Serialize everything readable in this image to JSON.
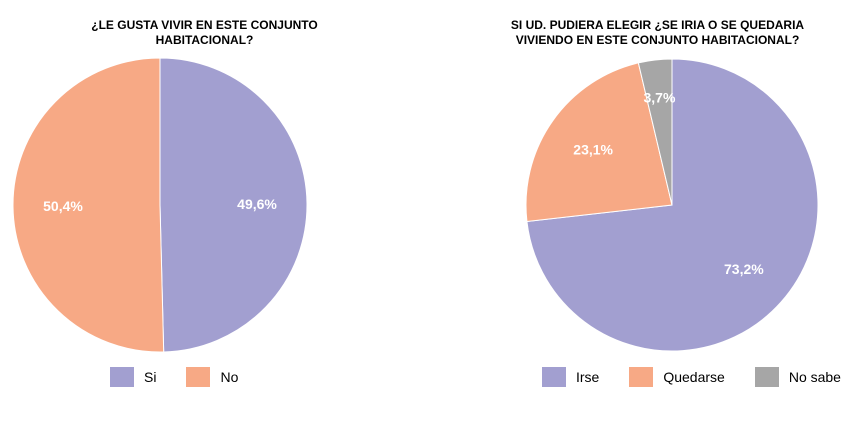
{
  "chart_data": [
    {
      "type": "pie",
      "title_lines": [
        "¿LE GUSTA VIVIR EN ESTE CONJUNTO",
        "HABITACIONAL?"
      ],
      "slices": [
        {
          "label": "Si",
          "value": 49.6,
          "display": "49,6%",
          "color": "#a29fd0"
        },
        {
          "label": "No",
          "value": 50.4,
          "display": "50,4%",
          "color": "#f7a985"
        }
      ],
      "legend": "bottom"
    },
    {
      "type": "pie",
      "title_lines": [
        "SI UD. PUDIERA ELEGIR ¿SE IRIA O SE QUEDARIA",
        "VIVIENDO EN ESTE CONJUNTO HABITACIONAL?"
      ],
      "slices": [
        {
          "label": "Irse",
          "value": 73.2,
          "display": "73,2%",
          "color": "#a29fd0"
        },
        {
          "label": "Quedarse",
          "value": 23.1,
          "display": "23,1%",
          "color": "#f7a985"
        },
        {
          "label": "No sabe",
          "value": 3.7,
          "display": "3,7%",
          "color": "#a6a6a6"
        }
      ],
      "legend": "bottom"
    }
  ]
}
